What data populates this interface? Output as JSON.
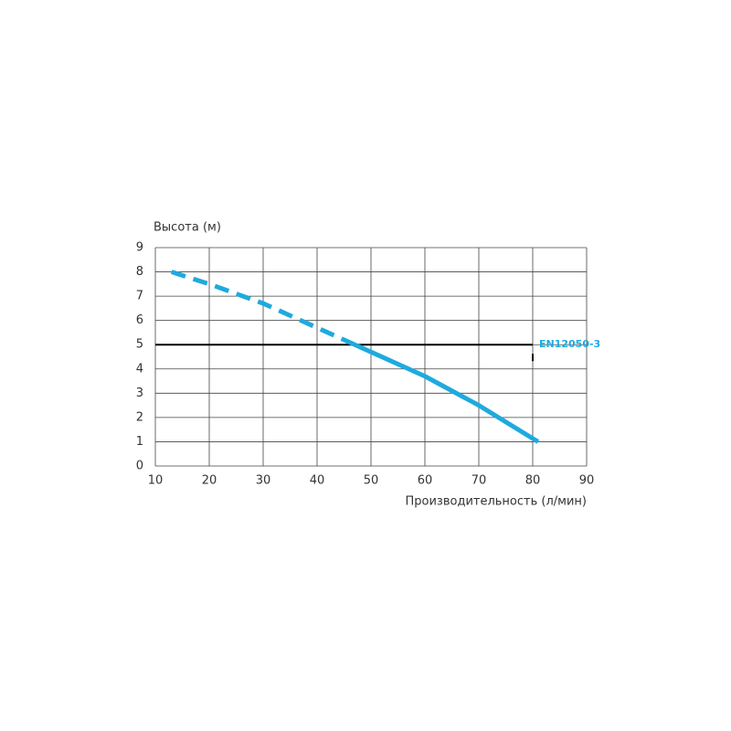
{
  "chart_data": {
    "type": "line",
    "x_label": "Производительность (л/мин)",
    "y_label": "Высота (м)",
    "xlim": [
      10,
      90
    ],
    "xticks": [
      10,
      20,
      30,
      40,
      50,
      60,
      70,
      80,
      90
    ],
    "ylim": [
      0,
      9
    ],
    "yticks": [
      0,
      1,
      2,
      3,
      4,
      5,
      6,
      7,
      8,
      9
    ],
    "grid": true,
    "series": [
      {
        "color": "#1eaadf",
        "dashed": true,
        "x": [
          13,
          20,
          30,
          40,
          47
        ],
        "values": [
          8.0,
          7.5,
          6.7,
          5.7,
          5.0
        ]
      },
      {
        "color": "#1eaadf",
        "dashed": false,
        "x": [
          47,
          50,
          60,
          70,
          81
        ],
        "values": [
          5.0,
          4.7,
          3.7,
          2.5,
          1.0
        ]
      }
    ],
    "reference_line": {
      "label": "EN12050-3",
      "value": 5,
      "x_end": 80,
      "color": "#000000",
      "label_color": "#1eaadf"
    }
  }
}
